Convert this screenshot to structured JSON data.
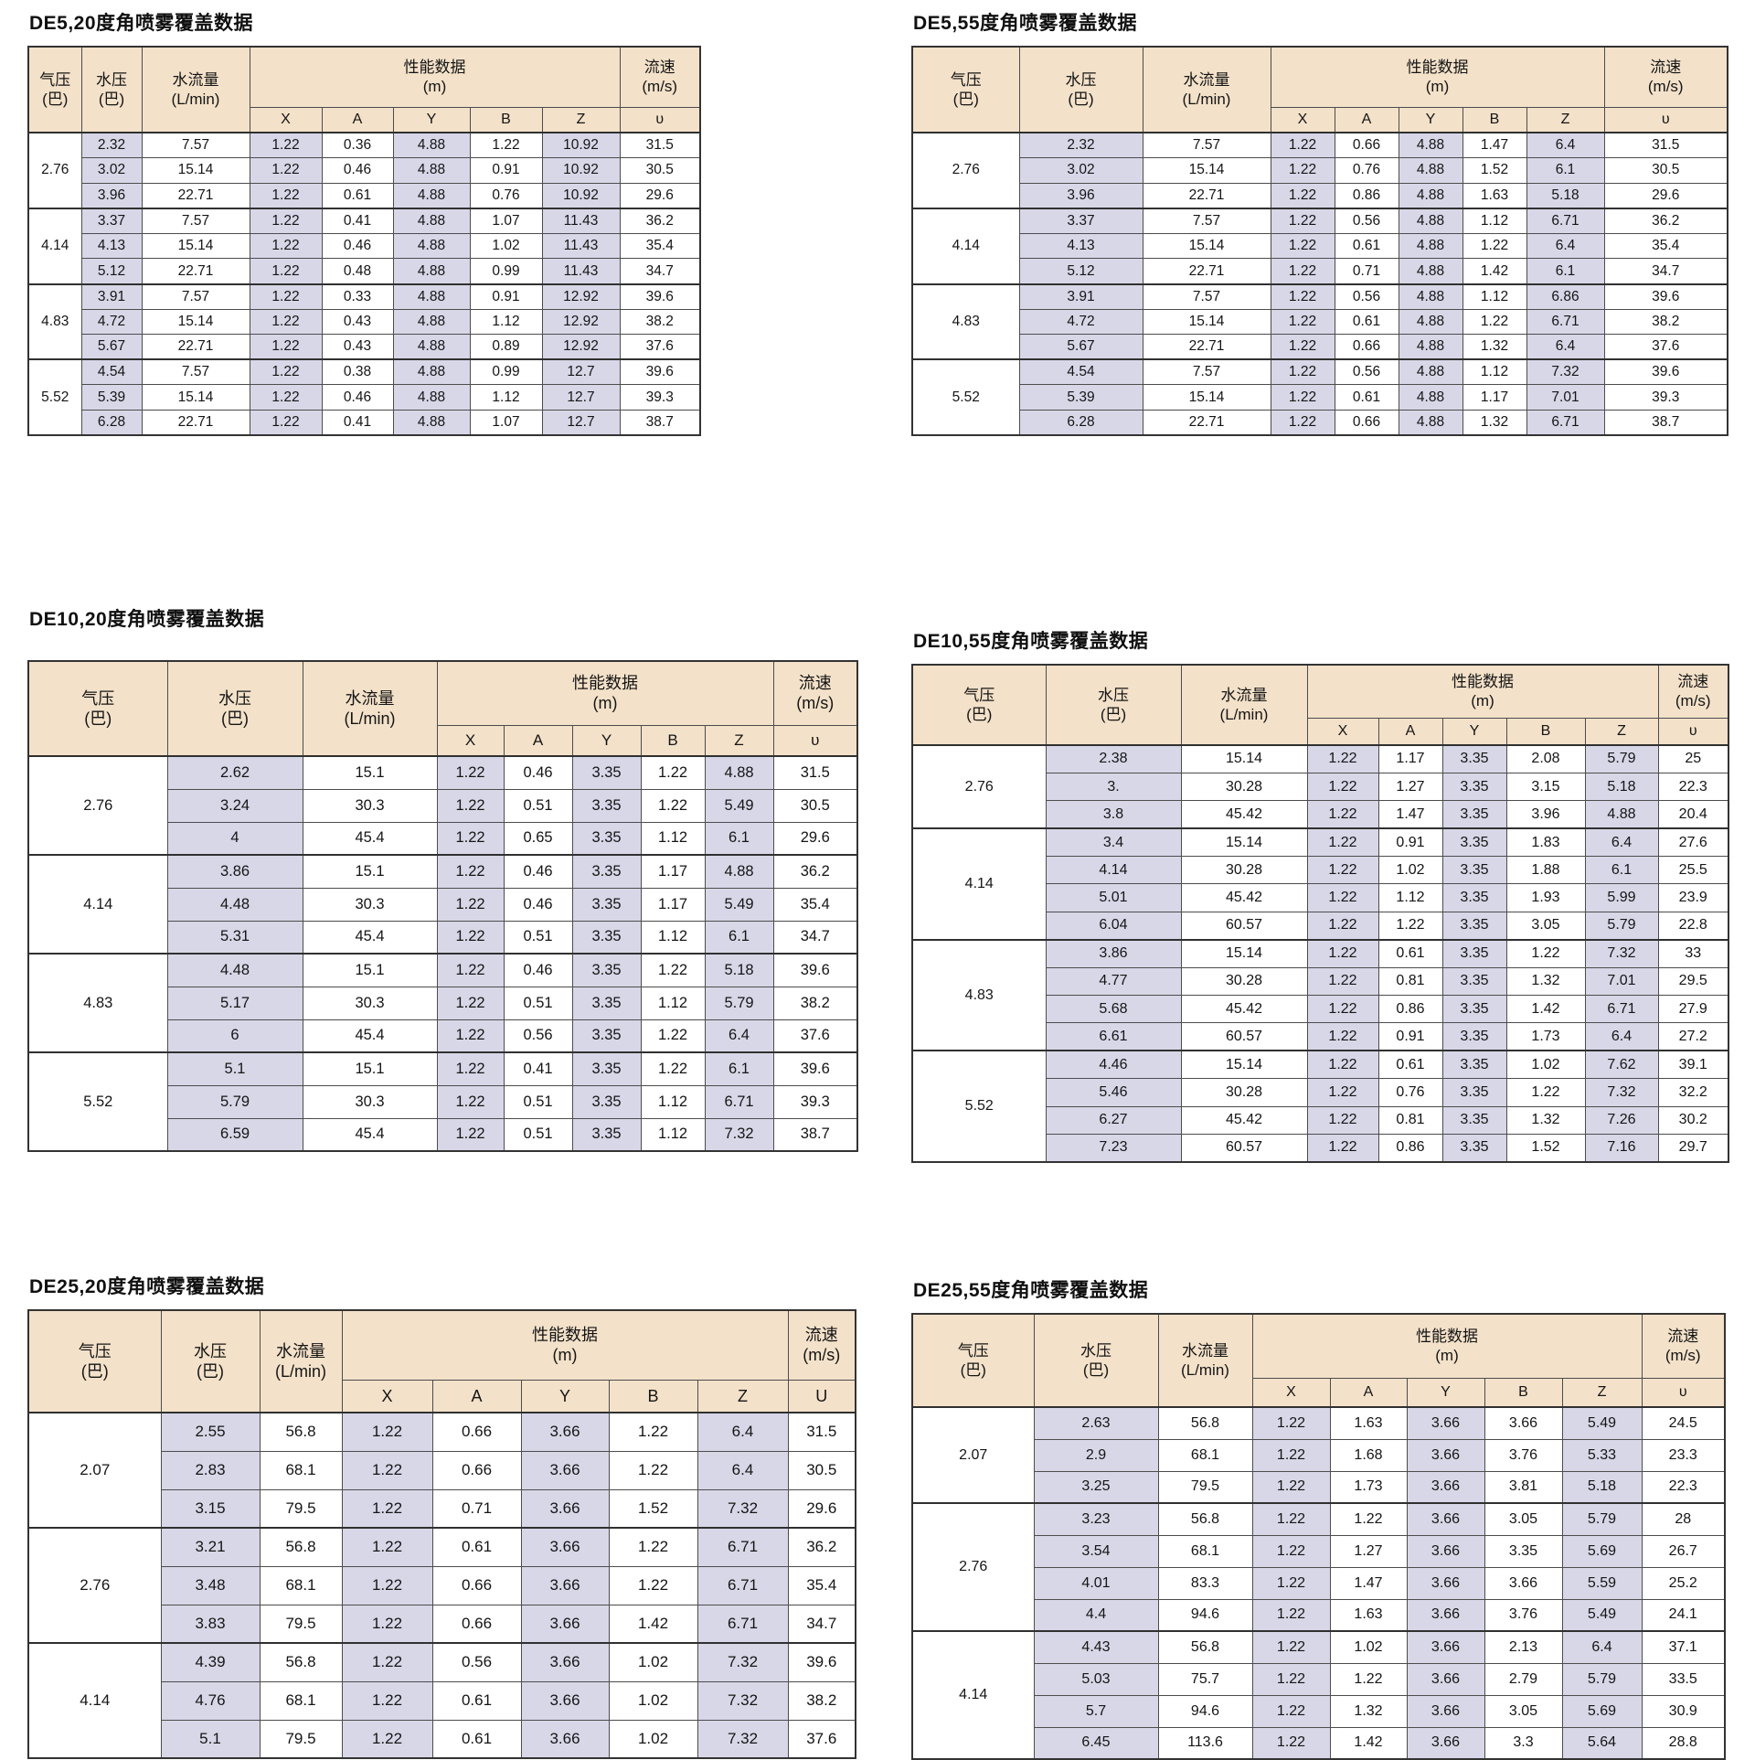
{
  "colors": {
    "page_bg": "#ffffff",
    "header_bg": "#f3e1c9",
    "lavender_cell_bg": "#d8d7e8",
    "white_cell_bg": "#ffffff",
    "border": "#4c4c4c",
    "border_heavy": "#303030",
    "text": "#151515"
  },
  "shared_headers": {
    "air_pressure": "气压\n(巴)",
    "water_pressure": "水压\n(巴)",
    "water_flow": "水流量\n(L/min)",
    "performance": "性能数据\n(m)",
    "performance_subcols": [
      "X",
      "A",
      "Y",
      "B",
      "Z"
    ],
    "velocity": "流速\n(m/s)"
  },
  "tables": [
    {
      "title": "DE5,20度角喷雾覆盖数据",
      "velocity_symbol": "υ",
      "groups": [
        {
          "air_pressure": "2.76",
          "rows": [
            [
              "2.32",
              "7.57",
              "1.22",
              "0.36",
              "4.88",
              "1.22",
              "10.92",
              "31.5"
            ],
            [
              "3.02",
              "15.14",
              "1.22",
              "0.46",
              "4.88",
              "0.91",
              "10.92",
              "30.5"
            ],
            [
              "3.96",
              "22.71",
              "1.22",
              "0.61",
              "4.88",
              "0.76",
              "10.92",
              "29.6"
            ]
          ]
        },
        {
          "air_pressure": "4.14",
          "rows": [
            [
              "3.37",
              "7.57",
              "1.22",
              "0.41",
              "4.88",
              "1.07",
              "11.43",
              "36.2"
            ],
            [
              "4.13",
              "15.14",
              "1.22",
              "0.46",
              "4.88",
              "1.02",
              "11.43",
              "35.4"
            ],
            [
              "5.12",
              "22.71",
              "1.22",
              "0.48",
              "4.88",
              "0.99",
              "11.43",
              "34.7"
            ]
          ]
        },
        {
          "air_pressure": "4.83",
          "rows": [
            [
              "3.91",
              "7.57",
              "1.22",
              "0.33",
              "4.88",
              "0.91",
              "12.92",
              "39.6"
            ],
            [
              "4.72",
              "15.14",
              "1.22",
              "0.43",
              "4.88",
              "1.12",
              "12.92",
              "38.2"
            ],
            [
              "5.67",
              "22.71",
              "1.22",
              "0.43",
              "4.88",
              "0.89",
              "12.92",
              "37.6"
            ]
          ]
        },
        {
          "air_pressure": "5.52",
          "rows": [
            [
              "4.54",
              "7.57",
              "1.22",
              "0.38",
              "4.88",
              "0.99",
              "12.7",
              "39.6"
            ],
            [
              "5.39",
              "15.14",
              "1.22",
              "0.46",
              "4.88",
              "1.12",
              "12.7",
              "39.3"
            ],
            [
              "6.28",
              "22.71",
              "1.22",
              "0.41",
              "4.88",
              "1.07",
              "12.7",
              "38.7"
            ]
          ]
        }
      ]
    },
    {
      "title": "DE5,55度角喷雾覆盖数据",
      "velocity_symbol": "υ",
      "groups": [
        {
          "air_pressure": "2.76",
          "rows": [
            [
              "2.32",
              "7.57",
              "1.22",
              "0.66",
              "4.88",
              "1.47",
              "6.4",
              "31.5"
            ],
            [
              "3.02",
              "15.14",
              "1.22",
              "0.76",
              "4.88",
              "1.52",
              "6.1",
              "30.5"
            ],
            [
              "3.96",
              "22.71",
              "1.22",
              "0.86",
              "4.88",
              "1.63",
              "5.18",
              "29.6"
            ]
          ]
        },
        {
          "air_pressure": "4.14",
          "rows": [
            [
              "3.37",
              "7.57",
              "1.22",
              "0.56",
              "4.88",
              "1.12",
              "6.71",
              "36.2"
            ],
            [
              "4.13",
              "15.14",
              "1.22",
              "0.61",
              "4.88",
              "1.22",
              "6.4",
              "35.4"
            ],
            [
              "5.12",
              "22.71",
              "1.22",
              "0.71",
              "4.88",
              "1.42",
              "6.1",
              "34.7"
            ]
          ]
        },
        {
          "air_pressure": "4.83",
          "rows": [
            [
              "3.91",
              "7.57",
              "1.22",
              "0.56",
              "4.88",
              "1.12",
              "6.86",
              "39.6"
            ],
            [
              "4.72",
              "15.14",
              "1.22",
              "0.61",
              "4.88",
              "1.22",
              "6.71",
              "38.2"
            ],
            [
              "5.67",
              "22.71",
              "1.22",
              "0.66",
              "4.88",
              "1.32",
              "6.4",
              "37.6"
            ]
          ]
        },
        {
          "air_pressure": "5.52",
          "rows": [
            [
              "4.54",
              "7.57",
              "1.22",
              "0.56",
              "4.88",
              "1.12",
              "7.32",
              "39.6"
            ],
            [
              "5.39",
              "15.14",
              "1.22",
              "0.61",
              "4.88",
              "1.17",
              "7.01",
              "39.3"
            ],
            [
              "6.28",
              "22.71",
              "1.22",
              "0.66",
              "4.88",
              "1.32",
              "6.71",
              "38.7"
            ]
          ]
        }
      ]
    },
    {
      "title": "DE10,20度角喷雾覆盖数据",
      "velocity_symbol": "υ",
      "groups": [
        {
          "air_pressure": "2.76",
          "rows": [
            [
              "2.62",
              "15.1",
              "1.22",
              "0.46",
              "3.35",
              "1.22",
              "4.88",
              "31.5"
            ],
            [
              "3.24",
              "30.3",
              "1.22",
              "0.51",
              "3.35",
              "1.22",
              "5.49",
              "30.5"
            ],
            [
              "4",
              "45.4",
              "1.22",
              "0.65",
              "3.35",
              "1.12",
              "6.1",
              "29.6"
            ]
          ]
        },
        {
          "air_pressure": "4.14",
          "rows": [
            [
              "3.86",
              "15.1",
              "1.22",
              "0.46",
              "3.35",
              "1.17",
              "4.88",
              "36.2"
            ],
            [
              "4.48",
              "30.3",
              "1.22",
              "0.46",
              "3.35",
              "1.17",
              "5.49",
              "35.4"
            ],
            [
              "5.31",
              "45.4",
              "1.22",
              "0.51",
              "3.35",
              "1.12",
              "6.1",
              "34.7"
            ]
          ]
        },
        {
          "air_pressure": "4.83",
          "rows": [
            [
              "4.48",
              "15.1",
              "1.22",
              "0.46",
              "3.35",
              "1.22",
              "5.18",
              "39.6"
            ],
            [
              "5.17",
              "30.3",
              "1.22",
              "0.51",
              "3.35",
              "1.12",
              "5.79",
              "38.2"
            ],
            [
              "6",
              "45.4",
              "1.22",
              "0.56",
              "3.35",
              "1.22",
              "6.4",
              "37.6"
            ]
          ]
        },
        {
          "air_pressure": "5.52",
          "rows": [
            [
              "5.1",
              "15.1",
              "1.22",
              "0.41",
              "3.35",
              "1.22",
              "6.1",
              "39.6"
            ],
            [
              "5.79",
              "30.3",
              "1.22",
              "0.51",
              "3.35",
              "1.12",
              "6.71",
              "39.3"
            ],
            [
              "6.59",
              "45.4",
              "1.22",
              "0.51",
              "3.35",
              "1.12",
              "7.32",
              "38.7"
            ]
          ]
        }
      ]
    },
    {
      "title": "DE10,55度角喷雾覆盖数据",
      "velocity_symbol": "υ",
      "groups": [
        {
          "air_pressure": "2.76",
          "rows": [
            [
              "2.38",
              "15.14",
              "1.22",
              "1.17",
              "3.35",
              "2.08",
              "5.79",
              "25"
            ],
            [
              "3.",
              "30.28",
              "1.22",
              "1.27",
              "3.35",
              "3.15",
              "5.18",
              "22.3"
            ],
            [
              "3.8",
              "45.42",
              "1.22",
              "1.47",
              "3.35",
              "3.96",
              "4.88",
              "20.4"
            ]
          ]
        },
        {
          "air_pressure": "4.14",
          "rows": [
            [
              "3.4",
              "15.14",
              "1.22",
              "0.91",
              "3.35",
              "1.83",
              "6.4",
              "27.6"
            ],
            [
              "4.14",
              "30.28",
              "1.22",
              "1.02",
              "3.35",
              "1.88",
              "6.1",
              "25.5"
            ],
            [
              "5.01",
              "45.42",
              "1.22",
              "1.12",
              "3.35",
              "1.93",
              "5.99",
              "23.9"
            ],
            [
              "6.04",
              "60.57",
              "1.22",
              "1.22",
              "3.35",
              "3.05",
              "5.79",
              "22.8"
            ]
          ]
        },
        {
          "air_pressure": "4.83",
          "rows": [
            [
              "3.86",
              "15.14",
              "1.22",
              "0.61",
              "3.35",
              "1.22",
              "7.32",
              "33"
            ],
            [
              "4.77",
              "30.28",
              "1.22",
              "0.81",
              "3.35",
              "1.32",
              "7.01",
              "29.5"
            ],
            [
              "5.68",
              "45.42",
              "1.22",
              "0.86",
              "3.35",
              "1.42",
              "6.71",
              "27.9"
            ],
            [
              "6.61",
              "60.57",
              "1.22",
              "0.91",
              "3.35",
              "1.73",
              "6.4",
              "27.2"
            ]
          ]
        },
        {
          "air_pressure": "5.52",
          "rows": [
            [
              "4.46",
              "15.14",
              "1.22",
              "0.61",
              "3.35",
              "1.02",
              "7.62",
              "39.1"
            ],
            [
              "5.46",
              "30.28",
              "1.22",
              "0.76",
              "3.35",
              "1.22",
              "7.32",
              "32.2"
            ],
            [
              "6.27",
              "45.42",
              "1.22",
              "0.81",
              "3.35",
              "1.32",
              "7.26",
              "30.2"
            ],
            [
              "7.23",
              "60.57",
              "1.22",
              "0.86",
              "3.35",
              "1.52",
              "7.16",
              "29.7"
            ]
          ]
        }
      ]
    },
    {
      "title": "DE25,20度角喷雾覆盖数据",
      "velocity_symbol": "U",
      "groups": [
        {
          "air_pressure": "2.07",
          "rows": [
            [
              "2.55",
              "56.8",
              "1.22",
              "0.66",
              "3.66",
              "1.22",
              "6.4",
              "31.5"
            ],
            [
              "2.83",
              "68.1",
              "1.22",
              "0.66",
              "3.66",
              "1.22",
              "6.4",
              "30.5"
            ],
            [
              "3.15",
              "79.5",
              "1.22",
              "0.71",
              "3.66",
              "1.52",
              "7.32",
              "29.6"
            ]
          ]
        },
        {
          "air_pressure": "2.76",
          "rows": [
            [
              "3.21",
              "56.8",
              "1.22",
              "0.61",
              "3.66",
              "1.22",
              "6.71",
              "36.2"
            ],
            [
              "3.48",
              "68.1",
              "1.22",
              "0.66",
              "3.66",
              "1.22",
              "6.71",
              "35.4"
            ],
            [
              "3.83",
              "79.5",
              "1.22",
              "0.66",
              "3.66",
              "1.42",
              "6.71",
              "34.7"
            ]
          ]
        },
        {
          "air_pressure": "4.14",
          "rows": [
            [
              "4.39",
              "56.8",
              "1.22",
              "0.56",
              "3.66",
              "1.02",
              "7.32",
              "39.6"
            ],
            [
              "4.76",
              "68.1",
              "1.22",
              "0.61",
              "3.66",
              "1.02",
              "7.32",
              "38.2"
            ],
            [
              "5.1",
              "79.5",
              "1.22",
              "0.61",
              "3.66",
              "1.02",
              "7.32",
              "37.6"
            ]
          ]
        }
      ]
    },
    {
      "title": "DE25,55度角喷雾覆盖数据",
      "velocity_symbol": "υ",
      "groups": [
        {
          "air_pressure": "2.07",
          "rows": [
            [
              "2.63",
              "56.8",
              "1.22",
              "1.63",
              "3.66",
              "3.66",
              "5.49",
              "24.5"
            ],
            [
              "2.9",
              "68.1",
              "1.22",
              "1.68",
              "3.66",
              "3.76",
              "5.33",
              "23.3"
            ],
            [
              "3.25",
              "79.5",
              "1.22",
              "1.73",
              "3.66",
              "3.81",
              "5.18",
              "22.3"
            ]
          ]
        },
        {
          "air_pressure": "2.76",
          "rows": [
            [
              "3.23",
              "56.8",
              "1.22",
              "1.22",
              "3.66",
              "3.05",
              "5.79",
              "28"
            ],
            [
              "3.54",
              "68.1",
              "1.22",
              "1.27",
              "3.66",
              "3.35",
              "5.69",
              "26.7"
            ],
            [
              "4.01",
              "83.3",
              "1.22",
              "1.47",
              "3.66",
              "3.66",
              "5.59",
              "25.2"
            ],
            [
              "4.4",
              "94.6",
              "1.22",
              "1.63",
              "3.66",
              "3.76",
              "5.49",
              "24.1"
            ]
          ]
        },
        {
          "air_pressure": "4.14",
          "rows": [
            [
              "4.43",
              "56.8",
              "1.22",
              "1.02",
              "3.66",
              "2.13",
              "6.4",
              "37.1"
            ],
            [
              "5.03",
              "75.7",
              "1.22",
              "1.22",
              "3.66",
              "2.79",
              "5.79",
              "33.5"
            ],
            [
              "5.7",
              "94.6",
              "1.22",
              "1.32",
              "3.66",
              "3.05",
              "5.69",
              "30.9"
            ],
            [
              "6.45",
              "113.6",
              "1.22",
              "1.42",
              "3.66",
              "3.3",
              "5.64",
              "28.8"
            ]
          ]
        }
      ]
    }
  ]
}
